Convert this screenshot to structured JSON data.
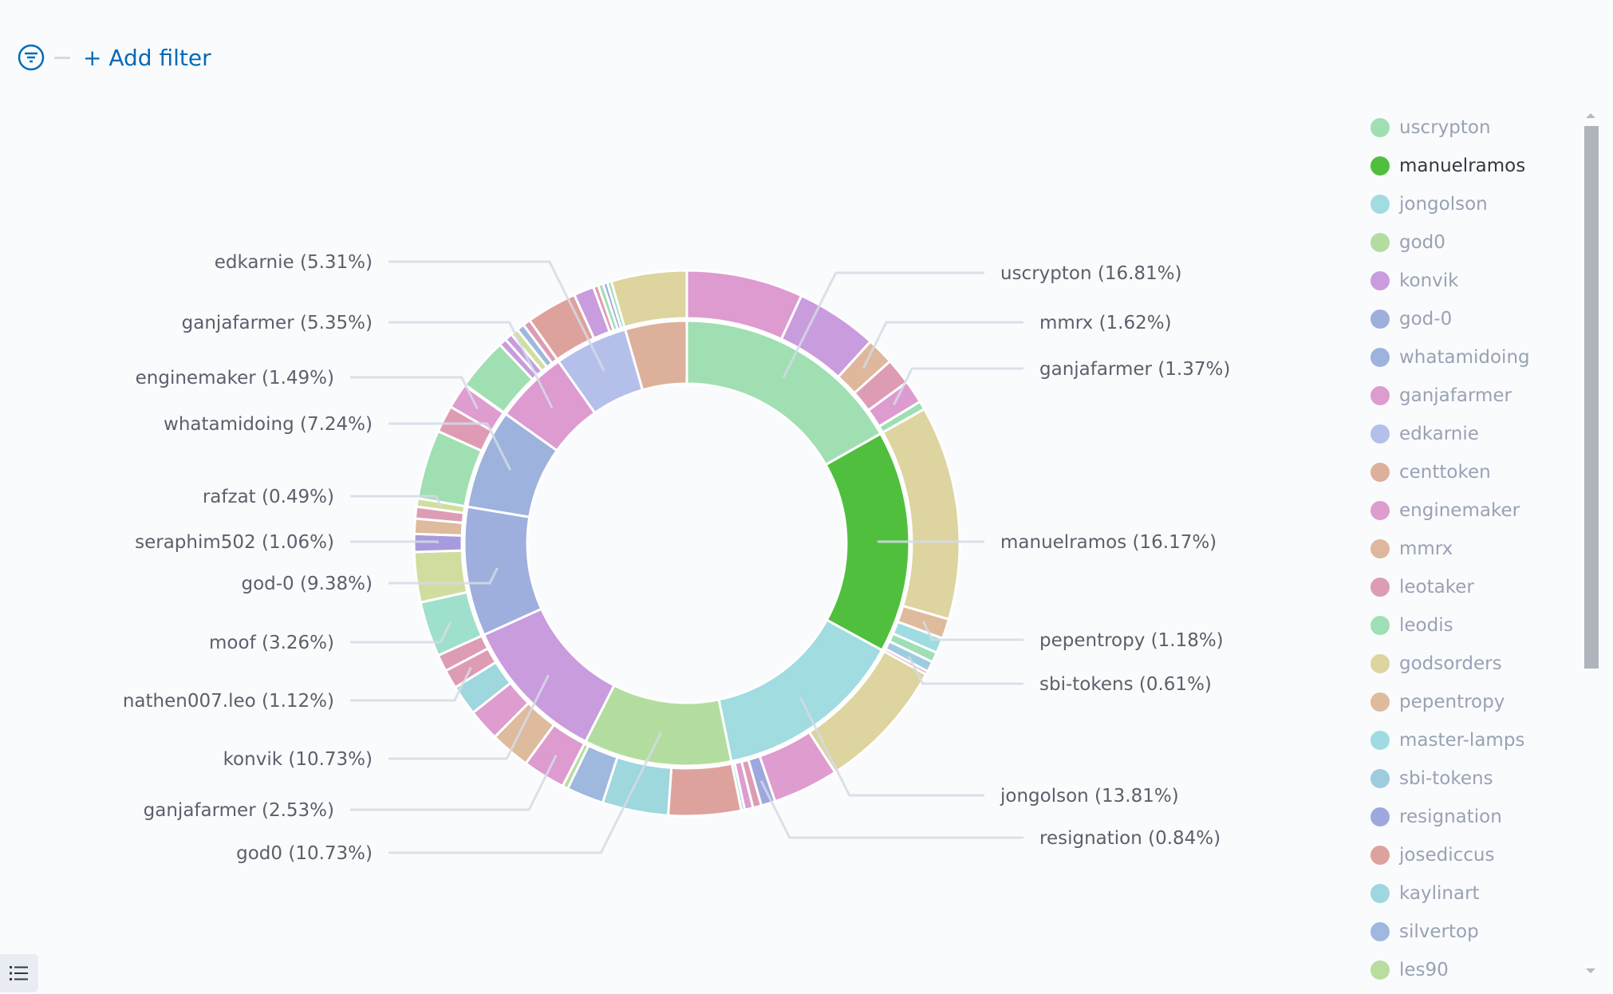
{
  "filter_bar": {
    "add_filter_label": "+ Add filter",
    "icon": "filter-icon"
  },
  "colors": {
    "accent": "#006bb8",
    "label_line": "#d3dae6"
  },
  "chart_data": {
    "type": "pie",
    "donut": true,
    "rings": 2,
    "inner_ring": [
      {
        "name": "uscrypton",
        "value": 16.81,
        "color": "#a0dfb2",
        "label": "uscrypton (16.81%)"
      },
      {
        "name": "manuelramos",
        "value": 16.17,
        "color": "#50bf3e",
        "label": "manuelramos (16.17%)"
      },
      {
        "name": "jongolson",
        "value": 13.81,
        "color": "#a0dce0",
        "label": "jongolson (13.81%)"
      },
      {
        "name": "god0",
        "value": 10.73,
        "color": "#b3dd9f",
        "label": "god0 (10.73%)"
      },
      {
        "name": "konvik",
        "value": 10.73,
        "color": "#c99cdd",
        "label": "konvik (10.73%)"
      },
      {
        "name": "god-0",
        "value": 9.38,
        "color": "#9eafde",
        "label": "god-0 (9.38%)"
      },
      {
        "name": "whatamidoing",
        "value": 7.24,
        "color": "#9db3dd",
        "label": "whatamidoing (7.24%)"
      },
      {
        "name": "ganjafarmer",
        "value": 5.35,
        "color": "#dd9bd0",
        "label": "ganjafarmer (5.35%)"
      },
      {
        "name": "edkarnie",
        "value": 5.31,
        "color": "#b4c0ea",
        "label": "edkarnie (5.31%)"
      },
      {
        "name": "centtoken",
        "value": 4.47,
        "color": "#ddb09c"
      }
    ],
    "outer_ring": [
      {
        "value": 6.9,
        "color": "#dd9bd0"
      },
      {
        "value": 4.85,
        "color": "#c99cdd"
      },
      {
        "value": 1.62,
        "color": "#deb79c",
        "label": "mmrx (1.62%)"
      },
      {
        "value": 1.57,
        "color": "#dd9cb4"
      },
      {
        "value": 1.37,
        "color": "#dd9bd0",
        "label": "ganjafarmer (1.37%)"
      },
      {
        "value": 0.5,
        "color": "#9edfb5"
      },
      {
        "value": 12.68,
        "color": "#ddd49f"
      },
      {
        "value": 1.18,
        "color": "#debb9c",
        "label": "pepentropy (1.18%)"
      },
      {
        "value": 0.9,
        "color": "#9edce2"
      },
      {
        "value": 0.6,
        "color": "#9edfb5"
      },
      {
        "value": 0.61,
        "color": "#9ecbe0",
        "label": "sbi-tokens (0.61%)"
      },
      {
        "value": 0.2,
        "color": "#dd9cb4"
      },
      {
        "value": 7.87,
        "color": "#ddd49f"
      },
      {
        "value": 3.9,
        "color": "#de9ccf"
      },
      {
        "value": 0.84,
        "color": "#9ea8de",
        "label": "resignation (0.84%)"
      },
      {
        "value": 0.5,
        "color": "#dd9cb4"
      },
      {
        "value": 0.5,
        "color": "#de9ccf"
      },
      {
        "value": 0.2,
        "color": "#9ed7de"
      },
      {
        "value": 4.3,
        "color": "#dea29d"
      },
      {
        "value": 3.9,
        "color": "#9ed7de"
      },
      {
        "value": 2.2,
        "color": "#9eb8de"
      },
      {
        "value": 0.33,
        "color": "#b8dd9e"
      },
      {
        "value": 2.53,
        "color": "#dd9bd0",
        "label": "ganjafarmer (2.53%)"
      },
      {
        "value": 2.38,
        "color": "#debb9c"
      },
      {
        "value": 1.9,
        "color": "#de9ccf"
      },
      {
        "value": 1.8,
        "color": "#9ed7de"
      },
      {
        "value": 1.12,
        "color": "#dd9cb4",
        "label": "nathen007.leo (1.12%)"
      },
      {
        "value": 1.0,
        "color": "#dd9cb4"
      },
      {
        "value": 3.26,
        "color": "#9ee0cc",
        "label": "moof (3.26%)"
      },
      {
        "value": 2.97,
        "color": "#d0dd9e"
      },
      {
        "value": 1.06,
        "color": "#a89bdd",
        "label": "seraphim502 (1.06%)"
      },
      {
        "value": 0.9,
        "color": "#debb9c"
      },
      {
        "value": 0.7,
        "color": "#dd9cb4"
      },
      {
        "value": 0.49,
        "color": "#cfdf9e",
        "label": "rafzat (0.49%)"
      },
      {
        "value": 4.1,
        "color": "#a0dfb2"
      },
      {
        "value": 1.6,
        "color": "#dd9cb4"
      },
      {
        "value": 1.49,
        "color": "#de9ccf",
        "label": "enginemaker (1.49%)"
      },
      {
        "value": 0.05,
        "color": "#fafbfd"
      },
      {
        "value": 3.1,
        "color": "#a0dfb2"
      },
      {
        "value": 0.45,
        "color": "#c99cdd"
      },
      {
        "value": 0.45,
        "color": "#c99cdd"
      },
      {
        "value": 0.45,
        "color": "#cfdf9e"
      },
      {
        "value": 0.45,
        "color": "#9eb8de"
      },
      {
        "value": 0.45,
        "color": "#dd9cb4"
      },
      {
        "value": 3.0,
        "color": "#dea29d"
      },
      {
        "value": 1.2,
        "color": "#c99cdd"
      },
      {
        "value": 0.3,
        "color": "#dd9cb4"
      },
      {
        "value": 0.3,
        "color": "#9edfb5"
      },
      {
        "value": 0.25,
        "color": "#9ea8de"
      },
      {
        "value": 0.25,
        "color": "#9edfb5"
      },
      {
        "value": 4.47,
        "color": "#ddd49f"
      }
    ],
    "legend_position": "right",
    "legend": [
      {
        "label": "uscrypton",
        "color": "#a0dfb2"
      },
      {
        "label": "manuelramos",
        "color": "#50bf3e",
        "active": true
      },
      {
        "label": "jongolson",
        "color": "#a0dce0"
      },
      {
        "label": "god0",
        "color": "#b3dd9f"
      },
      {
        "label": "konvik",
        "color": "#c99cdd"
      },
      {
        "label": "god-0",
        "color": "#9eafde"
      },
      {
        "label": "whatamidoing",
        "color": "#9db3dd"
      },
      {
        "label": "ganjafarmer",
        "color": "#dd9bd0"
      },
      {
        "label": "edkarnie",
        "color": "#b4c0ea"
      },
      {
        "label": "centtoken",
        "color": "#ddb09c"
      },
      {
        "label": "enginemaker",
        "color": "#de9ccf"
      },
      {
        "label": "mmrx",
        "color": "#deb79c"
      },
      {
        "label": "leotaker",
        "color": "#dd9cb4"
      },
      {
        "label": "leodis",
        "color": "#9edfb5"
      },
      {
        "label": "godsorders",
        "color": "#ddd49f"
      },
      {
        "label": "pepentropy",
        "color": "#debb9c"
      },
      {
        "label": "master-lamps",
        "color": "#9edce2"
      },
      {
        "label": "sbi-tokens",
        "color": "#9ecbe0"
      },
      {
        "label": "resignation",
        "color": "#9ea8de"
      },
      {
        "label": "josediccus",
        "color": "#dea29d"
      },
      {
        "label": "kaylinart",
        "color": "#9ed7de"
      },
      {
        "label": "silvertop",
        "color": "#9eb8de"
      },
      {
        "label": "les90",
        "color": "#b8dd9e"
      }
    ]
  }
}
